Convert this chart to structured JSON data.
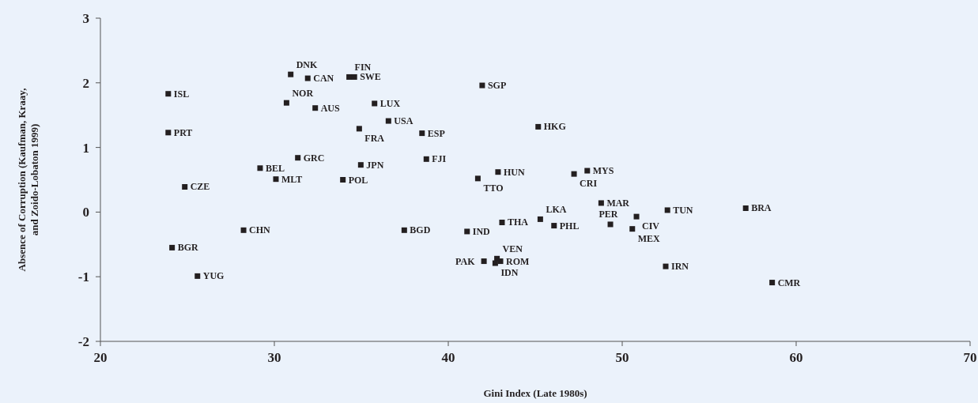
{
  "chart_data": {
    "type": "scatter",
    "xlabel": "Gini Index (Late 1980s)",
    "ylabel": "Absence of Corruption (Kaufman, Kraay, and Zoido-Lobaton 1999)",
    "xlim": [
      20,
      70
    ],
    "xticks": [
      20,
      30,
      40,
      50,
      60,
      70
    ],
    "ylim": [
      -2,
      3
    ],
    "yticks": [
      -2,
      -1,
      0,
      1,
      2,
      3
    ],
    "grid": false,
    "marker": "square",
    "series": [
      {
        "color": "#231f20",
        "x": [
          30.94,
          31.92,
          34.3,
          34.6,
          23.9,
          30.7,
          32.35,
          35.76,
          36.56,
          34.88,
          38.49,
          23.9,
          31.35,
          29.18,
          34.97,
          38.74,
          30.09,
          33.94,
          24.85,
          41.95,
          45.17,
          42.86,
          41.7,
          47.23,
          47.99,
          48.79,
          50.82,
          52.6,
          57.1,
          43.09,
          45.29,
          46.08,
          49.32,
          50.58,
          41.08,
          52.5,
          58.62,
          28.23,
          37.47,
          24.12,
          25.58,
          42.05,
          42.8,
          42.7,
          43.0
        ],
        "values": [
          2.13,
          2.07,
          2.09,
          2.09,
          1.83,
          1.69,
          1.61,
          1.68,
          1.41,
          1.29,
          1.22,
          1.23,
          0.84,
          0.68,
          0.73,
          0.82,
          0.51,
          0.5,
          0.39,
          1.96,
          1.32,
          0.62,
          0.52,
          0.59,
          0.64,
          0.14,
          -0.07,
          0.03,
          0.06,
          -0.16,
          -0.11,
          -0.21,
          -0.19,
          -0.26,
          -0.3,
          -0.84,
          -1.09,
          -0.28,
          -0.28,
          -0.55,
          -0.99,
          -0.76,
          -0.72,
          -0.79,
          -0.76
        ]
      }
    ],
    "annotations": [
      {
        "text": "DNK",
        "x": 30.94,
        "y": 2.13
      },
      {
        "text": "CAN",
        "x": 31.92,
        "y": 2.07
      },
      {
        "text": "FIN",
        "x": 34.3,
        "y": 2.09
      },
      {
        "text": "SWE",
        "x": 34.6,
        "y": 2.09
      },
      {
        "text": "ISL",
        "x": 23.9,
        "y": 1.83
      },
      {
        "text": "NOR",
        "x": 30.7,
        "y": 1.69
      },
      {
        "text": "AUS",
        "x": 32.35,
        "y": 1.61
      },
      {
        "text": "LUX",
        "x": 35.76,
        "y": 1.68
      },
      {
        "text": "USA",
        "x": 36.56,
        "y": 1.41
      },
      {
        "text": "FRA",
        "x": 34.88,
        "y": 1.29
      },
      {
        "text": "ESP",
        "x": 38.49,
        "y": 1.22
      },
      {
        "text": "PRT",
        "x": 23.9,
        "y": 1.23
      },
      {
        "text": "GRC",
        "x": 31.35,
        "y": 0.84
      },
      {
        "text": "BEL",
        "x": 29.18,
        "y": 0.68
      },
      {
        "text": "JPN",
        "x": 34.97,
        "y": 0.73
      },
      {
        "text": "FJI",
        "x": 38.74,
        "y": 0.82
      },
      {
        "text": "MLT",
        "x": 30.09,
        "y": 0.51
      },
      {
        "text": "POL",
        "x": 33.94,
        "y": 0.5
      },
      {
        "text": "CZE",
        "x": 24.85,
        "y": 0.39
      },
      {
        "text": "SGP",
        "x": 41.95,
        "y": 1.96
      },
      {
        "text": "HKG",
        "x": 45.17,
        "y": 1.32
      },
      {
        "text": "HUN",
        "x": 42.86,
        "y": 0.62
      },
      {
        "text": "TTO",
        "x": 41.7,
        "y": 0.52
      },
      {
        "text": "CRI",
        "x": 47.23,
        "y": 0.59
      },
      {
        "text": "MYS",
        "x": 47.99,
        "y": 0.64
      },
      {
        "text": "MAR",
        "x": 48.79,
        "y": 0.14
      },
      {
        "text": "CIV",
        "x": 50.82,
        "y": -0.07
      },
      {
        "text": "TUN",
        "x": 52.6,
        "y": 0.03
      },
      {
        "text": "BRA",
        "x": 57.1,
        "y": 0.06
      },
      {
        "text": "THA",
        "x": 43.09,
        "y": -0.16
      },
      {
        "text": "LKA",
        "x": 45.29,
        "y": -0.11
      },
      {
        "text": "PHL",
        "x": 46.08,
        "y": -0.21
      },
      {
        "text": "PER",
        "x": 49.32,
        "y": -0.19
      },
      {
        "text": "MEX",
        "x": 50.58,
        "y": -0.26
      },
      {
        "text": "IND",
        "x": 41.08,
        "y": -0.3
      },
      {
        "text": "IRN",
        "x": 52.5,
        "y": -0.84
      },
      {
        "text": "CMR",
        "x": 58.62,
        "y": -1.09
      },
      {
        "text": "CHN",
        "x": 28.23,
        "y": -0.28
      },
      {
        "text": "BGD",
        "x": 37.47,
        "y": -0.28
      },
      {
        "text": "BGR",
        "x": 24.12,
        "y": -0.55
      },
      {
        "text": "YUG",
        "x": 25.58,
        "y": -0.99
      },
      {
        "text": "PAK",
        "x": 42.05,
        "y": -0.76
      },
      {
        "text": "VEN",
        "x": 42.8,
        "y": -0.72
      },
      {
        "text": "IDN",
        "x": 42.7,
        "y": -0.79
      },
      {
        "text": "ROM",
        "x": 43.0,
        "y": -0.76
      }
    ]
  }
}
